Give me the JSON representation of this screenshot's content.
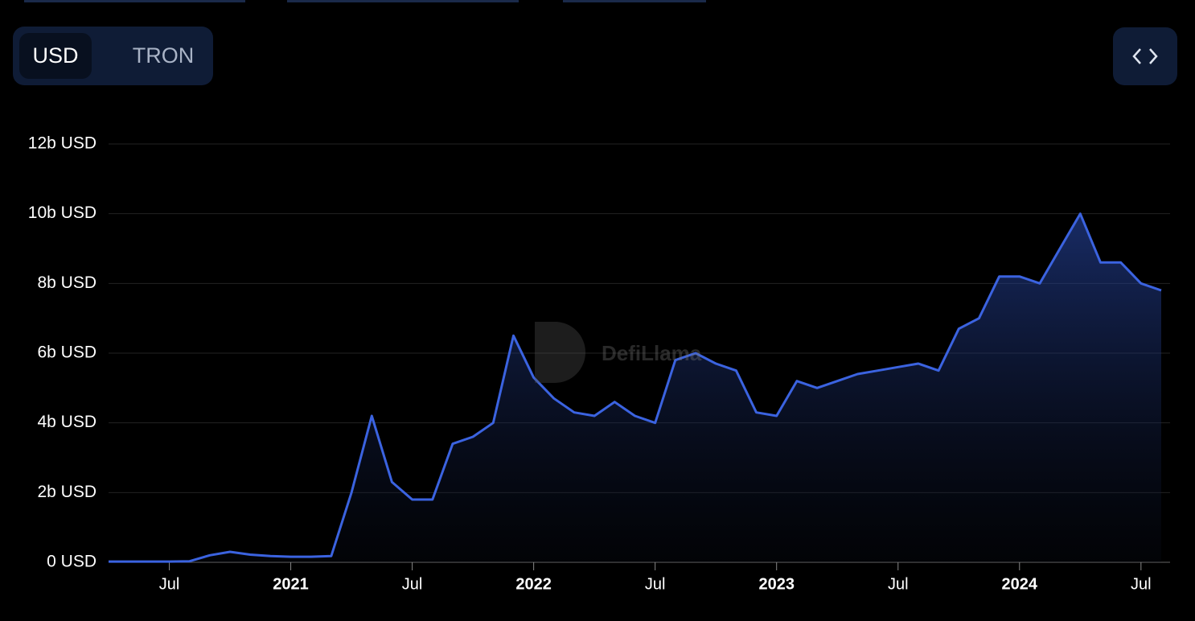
{
  "toggle": [
    "USD",
    "TRON"
  ],
  "watermark": "DefiLlama",
  "chart_data": {
    "type": "area",
    "x": [
      "2020-04",
      "2020-05",
      "2020-06",
      "2020-07",
      "2020-08",
      "2020-09",
      "2020-10",
      "2020-11",
      "2020-12",
      "2021-01",
      "2021-02",
      "2021-03",
      "2021-04",
      "2021-05",
      "2021-06",
      "2021-07",
      "2021-08",
      "2021-09",
      "2021-10",
      "2021-11",
      "2021-12",
      "2022-01",
      "2022-02",
      "2022-03",
      "2022-04",
      "2022-05",
      "2022-06",
      "2022-07",
      "2022-08",
      "2022-09",
      "2022-10",
      "2022-11",
      "2022-12",
      "2023-01",
      "2023-02",
      "2023-03",
      "2023-04",
      "2023-05",
      "2023-06",
      "2023-07",
      "2023-08",
      "2023-09",
      "2023-10",
      "2023-11",
      "2023-12",
      "2024-01",
      "2024-02",
      "2024-03",
      "2024-04",
      "2024-05",
      "2024-06",
      "2024-07",
      "2024-08"
    ],
    "series": [
      {
        "name": "USD",
        "color": "#3b63e0",
        "values": [
          0.02,
          0.02,
          0.02,
          0.02,
          0.03,
          0.2,
          0.3,
          0.22,
          0.18,
          0.16,
          0.16,
          0.18,
          2.0,
          4.2,
          2.3,
          1.8,
          1.8,
          3.4,
          3.6,
          4.0,
          6.5,
          5.3,
          4.7,
          4.3,
          4.2,
          4.6,
          4.2,
          4.0,
          5.8,
          6.0,
          5.7,
          5.5,
          4.3,
          4.2,
          5.2,
          5.0,
          5.2,
          5.4,
          5.5,
          5.6,
          5.7,
          5.5,
          6.7,
          7.0,
          8.2,
          8.2,
          8.0,
          9.0,
          10.0,
          8.6,
          8.6,
          8.0,
          7.8
        ]
      }
    ],
    "xlim": [
      "2020-04",
      "2024-08"
    ],
    "xticks": [
      {
        "value": "2020-07",
        "label": "Jul"
      },
      {
        "value": "2021-01",
        "label": "2021"
      },
      {
        "value": "2021-07",
        "label": "Jul"
      },
      {
        "value": "2022-01",
        "label": "2022"
      },
      {
        "value": "2022-07",
        "label": "Jul"
      },
      {
        "value": "2023-01",
        "label": "2023"
      },
      {
        "value": "2023-07",
        "label": "Jul"
      },
      {
        "value": "2024-01",
        "label": "2024"
      },
      {
        "value": "2024-07",
        "label": "Jul"
      }
    ],
    "ylim": [
      0,
      12
    ],
    "yticks": [
      {
        "value": 0,
        "label": "0 USD"
      },
      {
        "value": 2,
        "label": "2b USD"
      },
      {
        "value": 4,
        "label": "4b USD"
      },
      {
        "value": 6,
        "label": "6b USD"
      },
      {
        "value": 8,
        "label": "8b USD"
      },
      {
        "value": 10,
        "label": "10b USD"
      },
      {
        "value": 12,
        "label": "12b USD"
      }
    ],
    "grid": true
  }
}
